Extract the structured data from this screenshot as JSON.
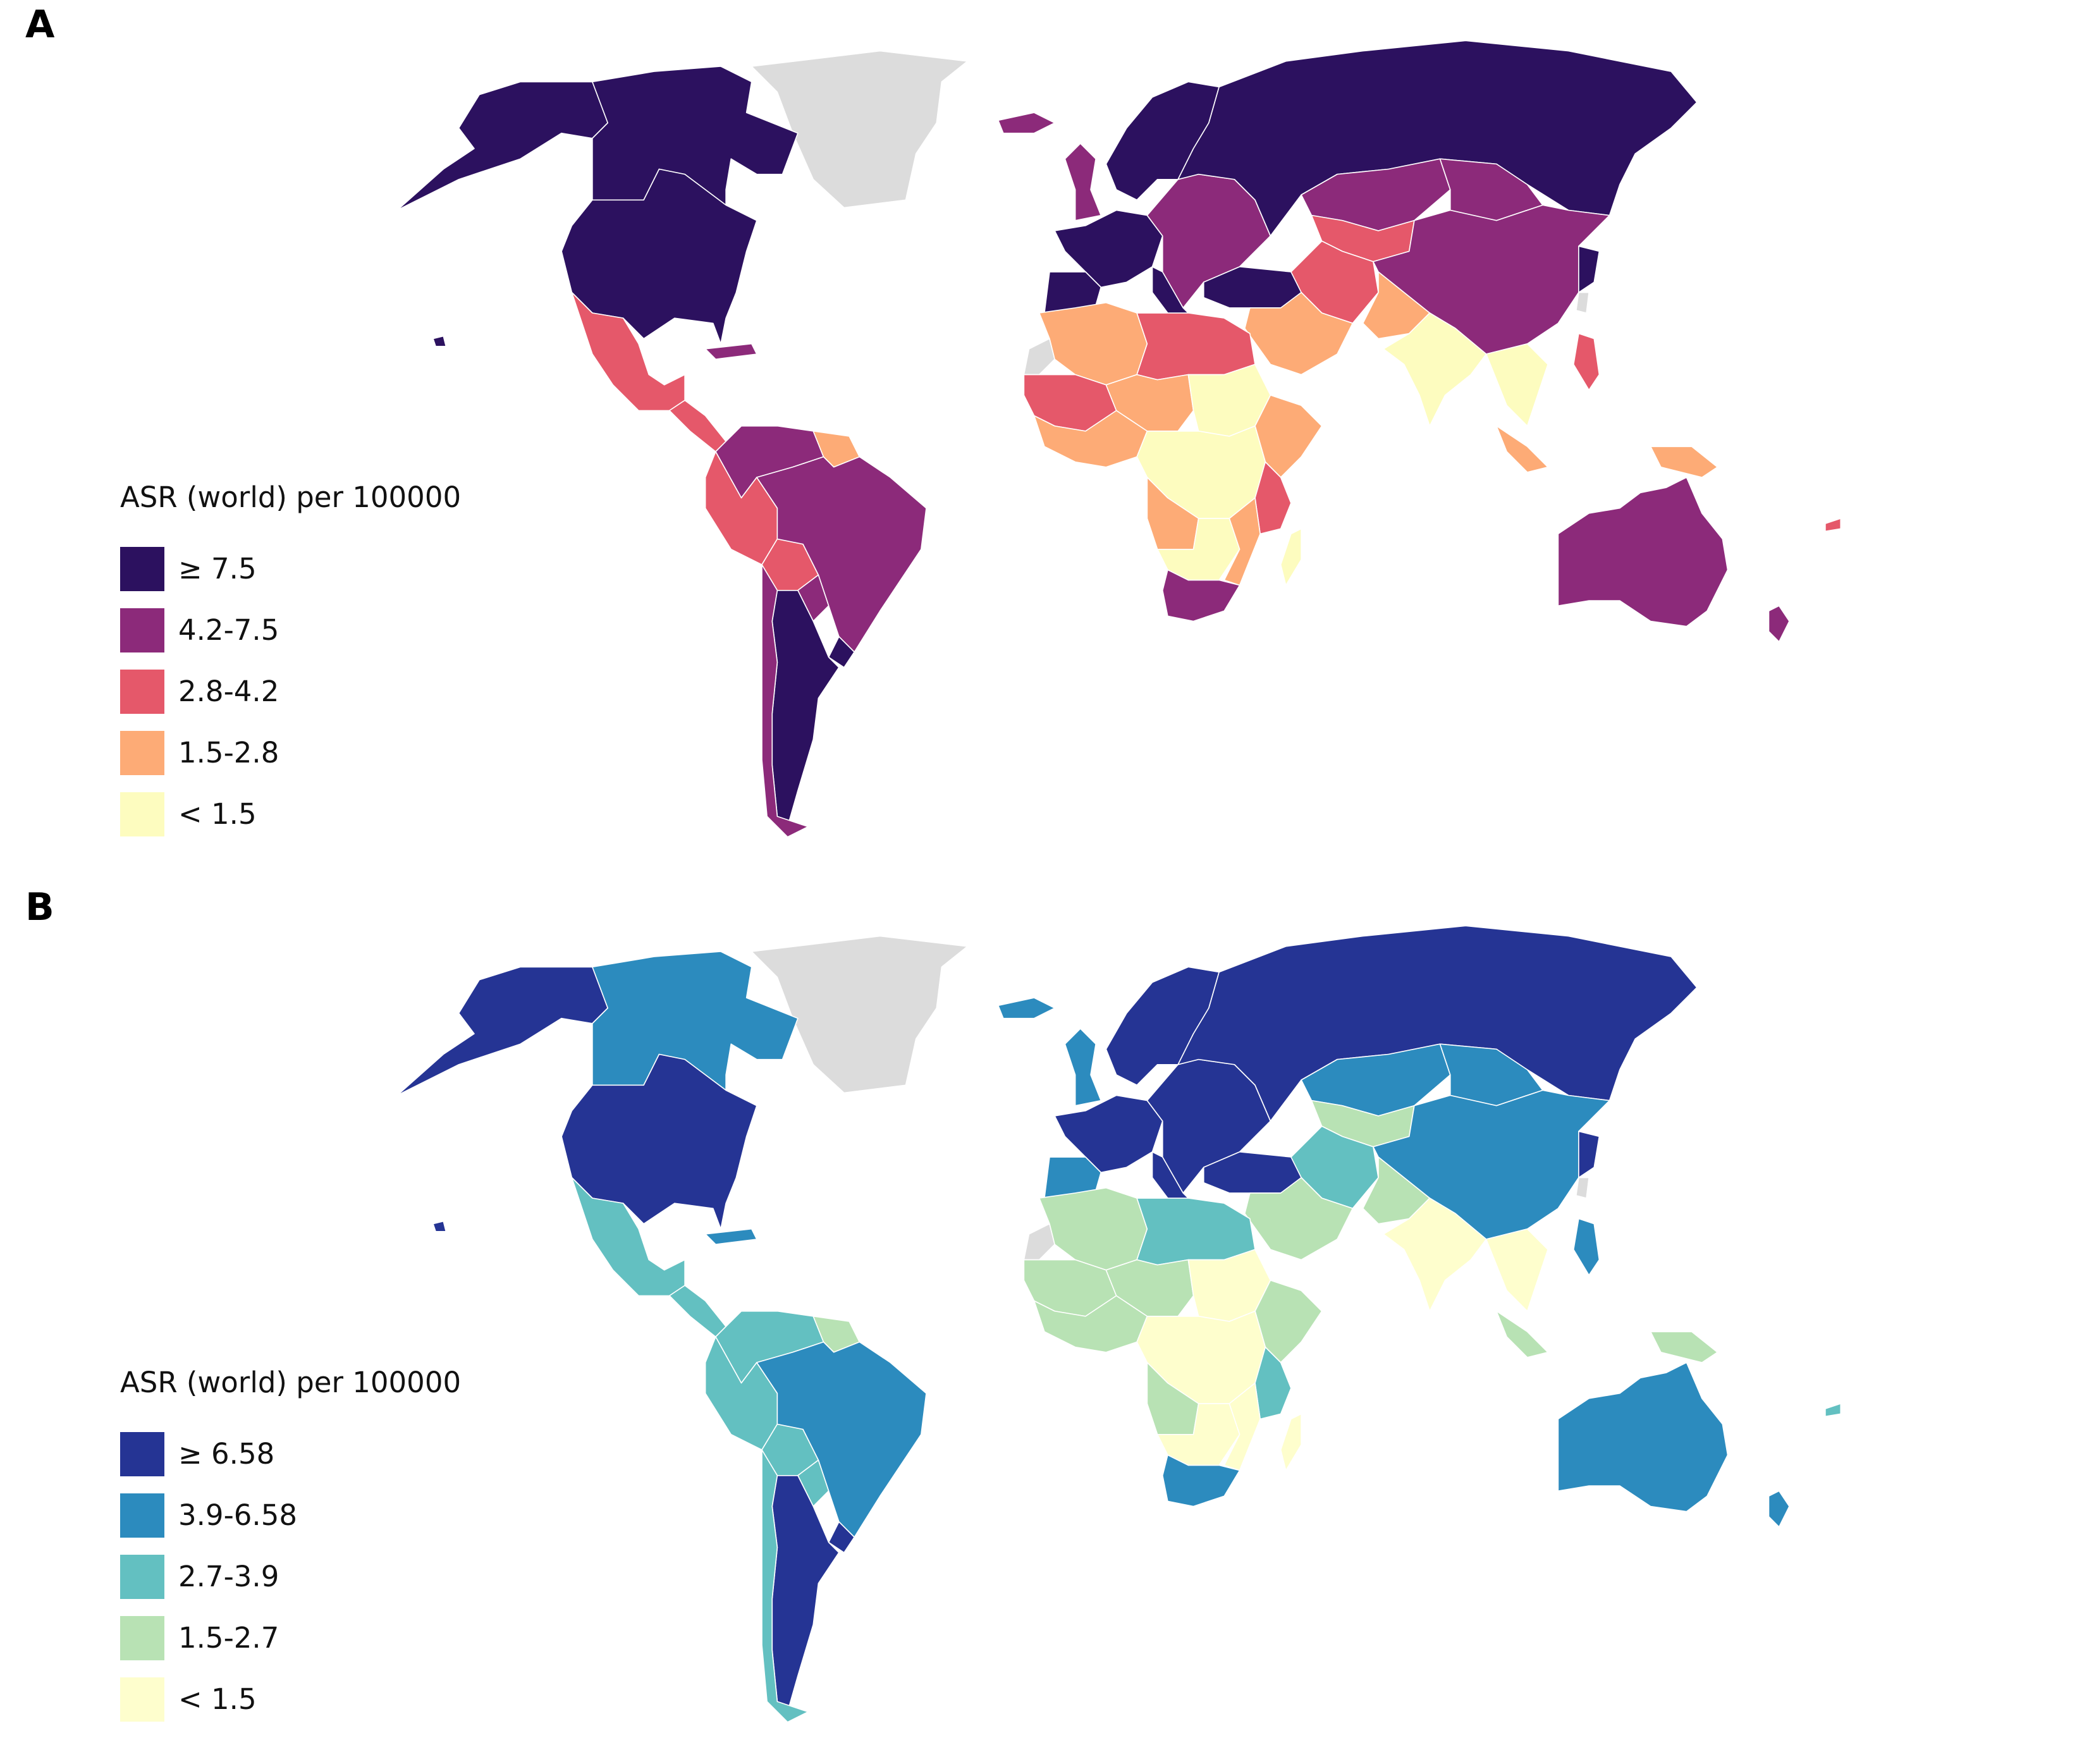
{
  "panels": [
    {
      "letter": "A",
      "legend_title": "ASR (world) per 100000",
      "no_data_color": "#dcdcdc",
      "border_color": "#ffffff",
      "classes": [
        {
          "label": "≥ 7.5",
          "color": "#2c115f"
        },
        {
          "label": "4.2-7.5",
          "color": "#8c2a7a"
        },
        {
          "label": "2.8-4.2",
          "color": "#e5586a"
        },
        {
          "label": "1.5-2.8",
          "color": "#fdab76"
        },
        {
          "label": "< 1.5",
          "color": "#fdfcbf"
        }
      ]
    },
    {
      "letter": "B",
      "legend_title": "ASR (world) per 100000",
      "no_data_color": "#dcdcdc",
      "border_color": "#ffffff",
      "classes": [
        {
          "label": "≥ 6.58",
          "color": "#253494"
        },
        {
          "label": "3.9-6.58",
          "color": "#2c8bbe"
        },
        {
          "label": "2.7-3.9",
          "color": "#63c0c1"
        },
        {
          "label": "1.5-2.7",
          "color": "#b8e2b4"
        },
        {
          "label": "< 1.5",
          "color": "#fefecd"
        }
      ]
    }
  ],
  "regions": [
    {
      "name": "greenland",
      "a": -1,
      "b": -1
    },
    {
      "name": "alaska",
      "a": 0,
      "b": 0
    },
    {
      "name": "canada",
      "a": 0,
      "b": 1
    },
    {
      "name": "usa",
      "a": 0,
      "b": 0
    },
    {
      "name": "mexico",
      "a": 2,
      "b": 2
    },
    {
      "name": "central-america",
      "a": 2,
      "b": 2
    },
    {
      "name": "caribbean",
      "a": 1,
      "b": 1
    },
    {
      "name": "colombia-venezuela",
      "a": 1,
      "b": 2
    },
    {
      "name": "guianas",
      "a": 3,
      "b": 3
    },
    {
      "name": "peru-ecuador",
      "a": 2,
      "b": 2
    },
    {
      "name": "bolivia",
      "a": 2,
      "b": 2
    },
    {
      "name": "brazil",
      "a": 1,
      "b": 1
    },
    {
      "name": "paraguay",
      "a": 1,
      "b": 2
    },
    {
      "name": "uruguay",
      "a": 0,
      "b": 0
    },
    {
      "name": "argentina",
      "a": 0,
      "b": 0
    },
    {
      "name": "chile",
      "a": 1,
      "b": 2
    },
    {
      "name": "iceland",
      "a": 1,
      "b": 1
    },
    {
      "name": "uk-ireland",
      "a": 1,
      "b": 1
    },
    {
      "name": "scandinavia",
      "a": 0,
      "b": 0
    },
    {
      "name": "western-europe",
      "a": 0,
      "b": 0
    },
    {
      "name": "iberia",
      "a": 0,
      "b": 1
    },
    {
      "name": "italy",
      "a": 0,
      "b": 0
    },
    {
      "name": "eastern-europe",
      "a": 1,
      "b": 0
    },
    {
      "name": "russia",
      "a": 0,
      "b": 0
    },
    {
      "name": "turkey",
      "a": 0,
      "b": 0
    },
    {
      "name": "kazakhstan",
      "a": 1,
      "b": 1
    },
    {
      "name": "central-asia",
      "a": 2,
      "b": 3
    },
    {
      "name": "mongolia",
      "a": 1,
      "b": 1
    },
    {
      "name": "china",
      "a": 1,
      "b": 1
    },
    {
      "name": "korea-japan",
      "a": 0,
      "b": 0
    },
    {
      "name": "taiwan",
      "a": -1,
      "b": -1
    },
    {
      "name": "iran",
      "a": 2,
      "b": 2
    },
    {
      "name": "arabia",
      "a": 3,
      "b": 3
    },
    {
      "name": "afghanistan-pakistan",
      "a": 3,
      "b": 3
    },
    {
      "name": "india",
      "a": 4,
      "b": 4
    },
    {
      "name": "southeast-asia",
      "a": 4,
      "b": 4
    },
    {
      "name": "philippines",
      "a": 2,
      "b": 1
    },
    {
      "name": "indonesia",
      "a": 3,
      "b": 3
    },
    {
      "name": "png",
      "a": 3,
      "b": 3
    },
    {
      "name": "western-sahara",
      "a": -1,
      "b": -1
    },
    {
      "name": "morocco-algeria",
      "a": 3,
      "b": 3
    },
    {
      "name": "libya-egypt",
      "a": 2,
      "b": 2
    },
    {
      "name": "sahel-west",
      "a": 2,
      "b": 3
    },
    {
      "name": "niger-chad",
      "a": 3,
      "b": 3
    },
    {
      "name": "west-africa",
      "a": 3,
      "b": 3
    },
    {
      "name": "sudan",
      "a": 4,
      "b": 4
    },
    {
      "name": "ethiopia-horn",
      "a": 3,
      "b": 3
    },
    {
      "name": "central-africa",
      "a": 4,
      "b": 4
    },
    {
      "name": "east-africa",
      "a": 2,
      "b": 2
    },
    {
      "name": "angola",
      "a": 3,
      "b": 3
    },
    {
      "name": "southern-africa",
      "a": 4,
      "b": 4
    },
    {
      "name": "mozambique",
      "a": 3,
      "b": 4
    },
    {
      "name": "south-africa",
      "a": 1,
      "b": 1
    },
    {
      "name": "madagascar",
      "a": 4,
      "b": 4
    },
    {
      "name": "australia",
      "a": 1,
      "b": 1
    },
    {
      "name": "new-zealand",
      "a": 1,
      "b": 1
    },
    {
      "name": "hawaii",
      "a": 0,
      "b": 0
    },
    {
      "name": "pacific-islands",
      "a": 2,
      "b": 2
    }
  ]
}
